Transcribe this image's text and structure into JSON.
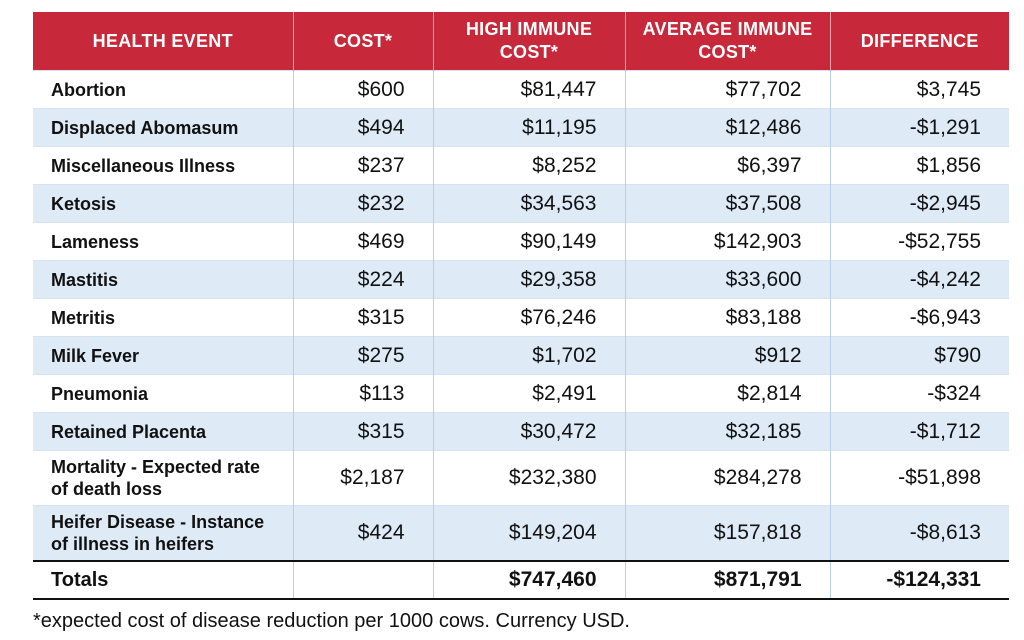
{
  "table": {
    "headers": [
      "HEALTH EVENT",
      "COST*",
      "HIGH IMMUNE COST*",
      "AVERAGE IMMUNE COST*",
      "DIFFERENCE"
    ],
    "rows": [
      {
        "event": "Abortion",
        "cost": "$600",
        "high": "$81,447",
        "average": "$77,702",
        "difference": "$3,745"
      },
      {
        "event": "Displaced Abomasum",
        "cost": "$494",
        "high": "$11,195",
        "average": "$12,486",
        "difference": "-$1,291"
      },
      {
        "event": "Miscellaneous Illness",
        "cost": "$237",
        "high": "$8,252",
        "average": "$6,397",
        "difference": "$1,856"
      },
      {
        "event": "Ketosis",
        "cost": "$232",
        "high": "$34,563",
        "average": "$37,508",
        "difference": "-$2,945"
      },
      {
        "event": "Lameness",
        "cost": "$469",
        "high": "$90,149",
        "average": "$142,903",
        "difference": "-$52,755"
      },
      {
        "event": "Mastitis",
        "cost": "$224",
        "high": "$29,358",
        "average": "$33,600",
        "difference": "-$4,242"
      },
      {
        "event": "Metritis",
        "cost": "$315",
        "high": "$76,246",
        "average": "$83,188",
        "difference": "-$6,943"
      },
      {
        "event": "Milk Fever",
        "cost": "$275",
        "high": "$1,702",
        "average": "$912",
        "difference": "$790"
      },
      {
        "event": "Pneumonia",
        "cost": "$113",
        "high": "$2,491",
        "average": "$2,814",
        "difference": "-$324"
      },
      {
        "event": "Retained Placenta",
        "cost": "$315",
        "high": "$30,472",
        "average": "$32,185",
        "difference": "-$1,712"
      },
      {
        "event": "Mortality - Expected rate of death loss",
        "cost": "$2,187",
        "high": "$232,380",
        "average": "$284,278",
        "difference": "-$51,898"
      },
      {
        "event": "Heifer Disease - Instance of illness in heifers",
        "cost": "$424",
        "high": "$149,204",
        "average": "$157,818",
        "difference": "-$8,613"
      }
    ],
    "totals": {
      "label": "Totals",
      "cost": "",
      "high": "$747,460",
      "average": "$871,791",
      "difference": "-$124,331"
    }
  },
  "footnote": "*expected cost of disease reduction per 1000 cows. Currency USD."
}
